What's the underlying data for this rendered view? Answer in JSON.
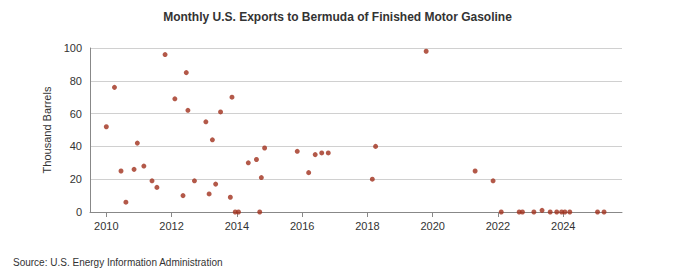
{
  "chart_data": {
    "type": "scatter",
    "title": "Monthly U.S. Exports to Bermuda of Finished Motor Gasoline",
    "y_label": "Thousand Barrels",
    "annotations": [
      "Source: U.S. Energy Information Administration"
    ],
    "x": [
      2010.0,
      2010.25,
      2010.45,
      2010.6,
      2010.85,
      2010.95,
      2011.15,
      2011.4,
      2011.55,
      2011.8,
      2012.1,
      2012.35,
      2012.45,
      2012.5,
      2012.7,
      2013.05,
      2013.15,
      2013.25,
      2013.35,
      2013.5,
      2013.8,
      2013.85,
      2013.95,
      2014.05,
      2014.35,
      2014.6,
      2014.7,
      2014.75,
      2014.85,
      2015.85,
      2016.2,
      2016.4,
      2016.6,
      2016.8,
      2018.15,
      2018.25,
      2019.8,
      2021.3,
      2021.85,
      2022.1,
      2022.65,
      2022.75,
      2023.1,
      2023.35,
      2023.6,
      2023.8,
      2023.95,
      2024.05,
      2024.2,
      2025.05,
      2025.25
    ],
    "values": [
      52,
      76,
      25,
      6,
      26,
      42,
      28,
      19,
      15,
      96,
      69,
      10,
      85,
      62,
      19,
      55,
      11,
      44,
      17,
      61,
      9,
      70,
      0,
      0,
      30,
      32,
      0,
      21,
      39,
      37,
      24,
      35,
      36,
      36,
      20,
      40,
      98,
      25,
      19,
      0,
      0,
      0,
      0,
      1,
      0,
      0,
      0,
      0,
      0,
      0,
      0
    ],
    "color": "#a0301b",
    "marker": "circle",
    "xlim": [
      2009.5,
      2025.8
    ],
    "xticks": [
      2010,
      2012,
      2014,
      2016,
      2018,
      2020,
      2022,
      2024
    ],
    "ylim": [
      0,
      100
    ],
    "yticks": [
      0,
      20,
      40,
      60,
      80,
      100
    ],
    "grid": true
  }
}
